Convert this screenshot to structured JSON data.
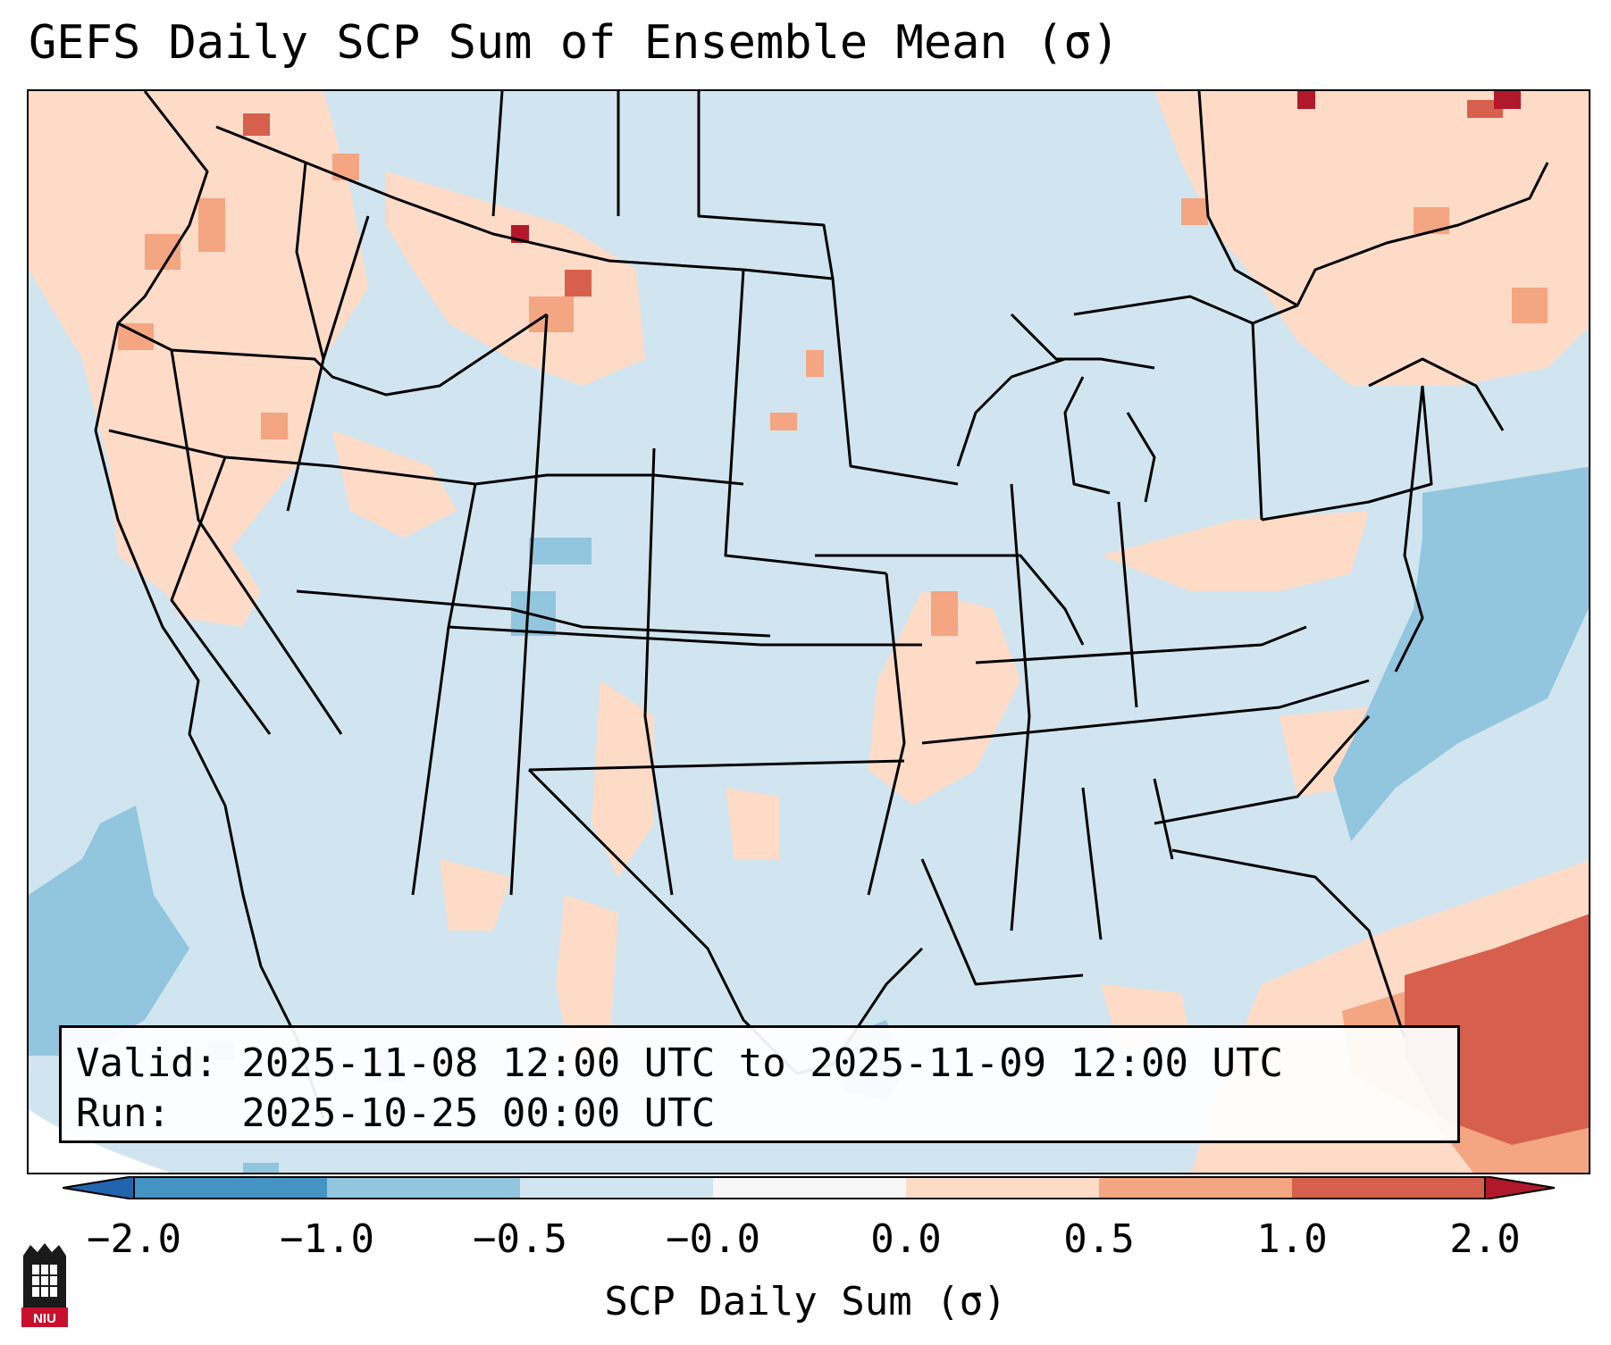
{
  "title": "GEFS Daily SCP Sum of Ensemble Mean (σ)",
  "valid_line": "Valid: 2025-11-08 12:00 UTC to 2025-11-09 12:00 UTC",
  "run_line": "Run:   2025-10-25 00:00 UTC",
  "colorbar": {
    "label": "SCP Daily Sum (σ)",
    "ticks": [
      "−2.0",
      "−1.0",
      "−0.5",
      "−0.0",
      "0.0",
      "0.5",
      "1.0",
      "2.0"
    ],
    "bin_colors": [
      "#4393c3",
      "#92c5de",
      "#d1e5f0",
      "#f7f7f7",
      "#fddbc7",
      "#f4a582",
      "#d6604d"
    ],
    "extend_low_color": "#2166ac",
    "extend_high_color": "#b2182b",
    "bounds": [
      -2.0,
      -1.0,
      -0.5,
      0.0,
      0.0,
      0.5,
      1.0,
      2.0
    ]
  },
  "logo_text": "NIU",
  "colors": {
    "background_field": "#d1e5f0",
    "state_lines": "#000000"
  }
}
